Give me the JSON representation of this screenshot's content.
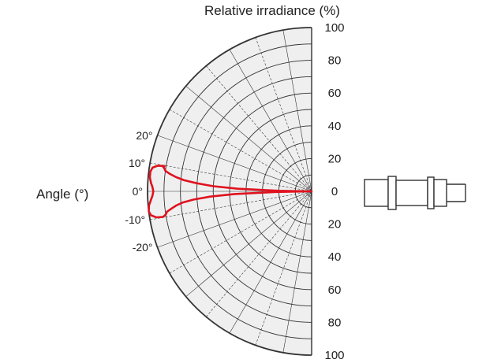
{
  "chart_data": {
    "type": "polar-half",
    "title": "Relative irradiance (%)",
    "angle_label": "Angle (°)",
    "radial_ticks_top": [
      "100",
      "80",
      "60",
      "40",
      "20",
      "0"
    ],
    "radial_ticks_bottom": [
      "20",
      "40",
      "60",
      "80",
      "100"
    ],
    "angle_ticks": [
      {
        "deg": 20,
        "label": "20°"
      },
      {
        "deg": 10,
        "label": "10°"
      },
      {
        "deg": 0,
        "label": "0°"
      },
      {
        "deg": -10,
        "label": "-10°"
      },
      {
        "deg": -20,
        "label": "-20°"
      }
    ],
    "r_range": [
      0,
      100
    ],
    "angle_range": [
      -90,
      90
    ],
    "grid": true,
    "series": [
      {
        "color": "#e0121f",
        "points": [
          [
            0,
            0
          ],
          [
            1,
            20
          ],
          [
            2,
            45
          ],
          [
            3,
            60
          ],
          [
            4,
            70
          ],
          [
            5,
            78
          ],
          [
            6,
            83
          ],
          [
            7,
            87
          ],
          [
            8,
            90
          ],
          [
            9,
            91
          ],
          [
            9.5,
            92
          ],
          [
            9.8,
            91
          ],
          [
            9.5,
            95
          ],
          [
            8.5,
            98
          ],
          [
            7,
            99
          ],
          [
            5,
            99
          ],
          [
            3,
            98
          ],
          [
            1.5,
            97
          ],
          [
            0,
            96.5
          ],
          [
            -1.5,
            97
          ],
          [
            -3,
            98
          ],
          [
            -5,
            99.5
          ],
          [
            -7,
            100
          ],
          [
            -8.5,
            99
          ],
          [
            -9.5,
            96
          ],
          [
            -9.8,
            92
          ],
          [
            -9.5,
            91
          ],
          [
            -9,
            90
          ],
          [
            -8,
            89
          ],
          [
            -7,
            86
          ],
          [
            -6,
            83
          ],
          [
            -5,
            79
          ],
          [
            -4,
            72
          ],
          [
            -3,
            62
          ],
          [
            -2,
            47
          ],
          [
            -1,
            22
          ],
          [
            0,
            0
          ]
        ]
      }
    ],
    "colors": {
      "grid": "#333333",
      "fill": "#efefef",
      "curve": "#e0121f"
    }
  },
  "icons": {
    "emitter": "led-connector-icon"
  }
}
